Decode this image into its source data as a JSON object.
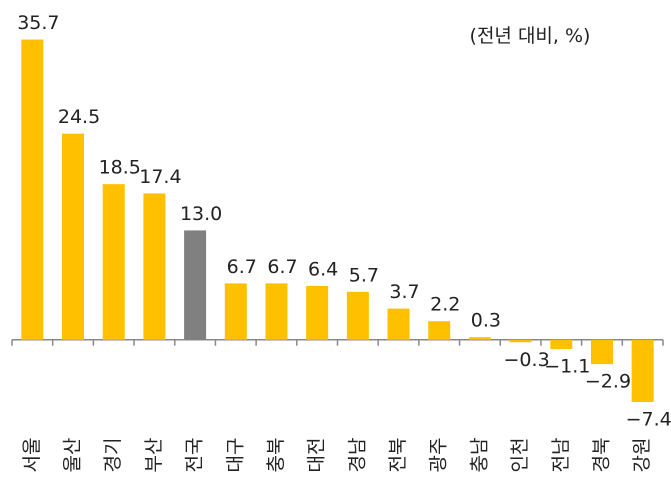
{
  "chart_data": {
    "type": "bar",
    "unit_label": "(전년 대비, %)",
    "categories": [
      "서울",
      "울산",
      "경기",
      "부산",
      "전국",
      "대구",
      "충북",
      "대전",
      "경남",
      "전북",
      "광주",
      "충남",
      "인천",
      "전남",
      "경북",
      "강원"
    ],
    "values": [
      35.7,
      24.5,
      18.5,
      17.4,
      13.0,
      6.7,
      6.7,
      6.4,
      5.7,
      3.7,
      2.2,
      0.3,
      -0.3,
      -1.1,
      -2.9,
      -7.4
    ],
    "value_labels": [
      "35.7",
      "24.5",
      "18.5",
      "17.4",
      "13.0",
      "6.7",
      "6.7",
      "6.4",
      "5.7",
      "3.7",
      "2.2",
      "0.3",
      "−0.3",
      "−1.1",
      "−2.9",
      "−7.4"
    ],
    "colors": [
      "#FFC000",
      "#FFC000",
      "#FFC000",
      "#FFC000",
      "#808080",
      "#FFC000",
      "#FFC000",
      "#FFC000",
      "#FFC000",
      "#FFC000",
      "#FFC000",
      "#FFC000",
      "#FFC000",
      "#FFC000",
      "#FFC000",
      "#FFC000"
    ],
    "ylim": [
      -8,
      36
    ]
  }
}
